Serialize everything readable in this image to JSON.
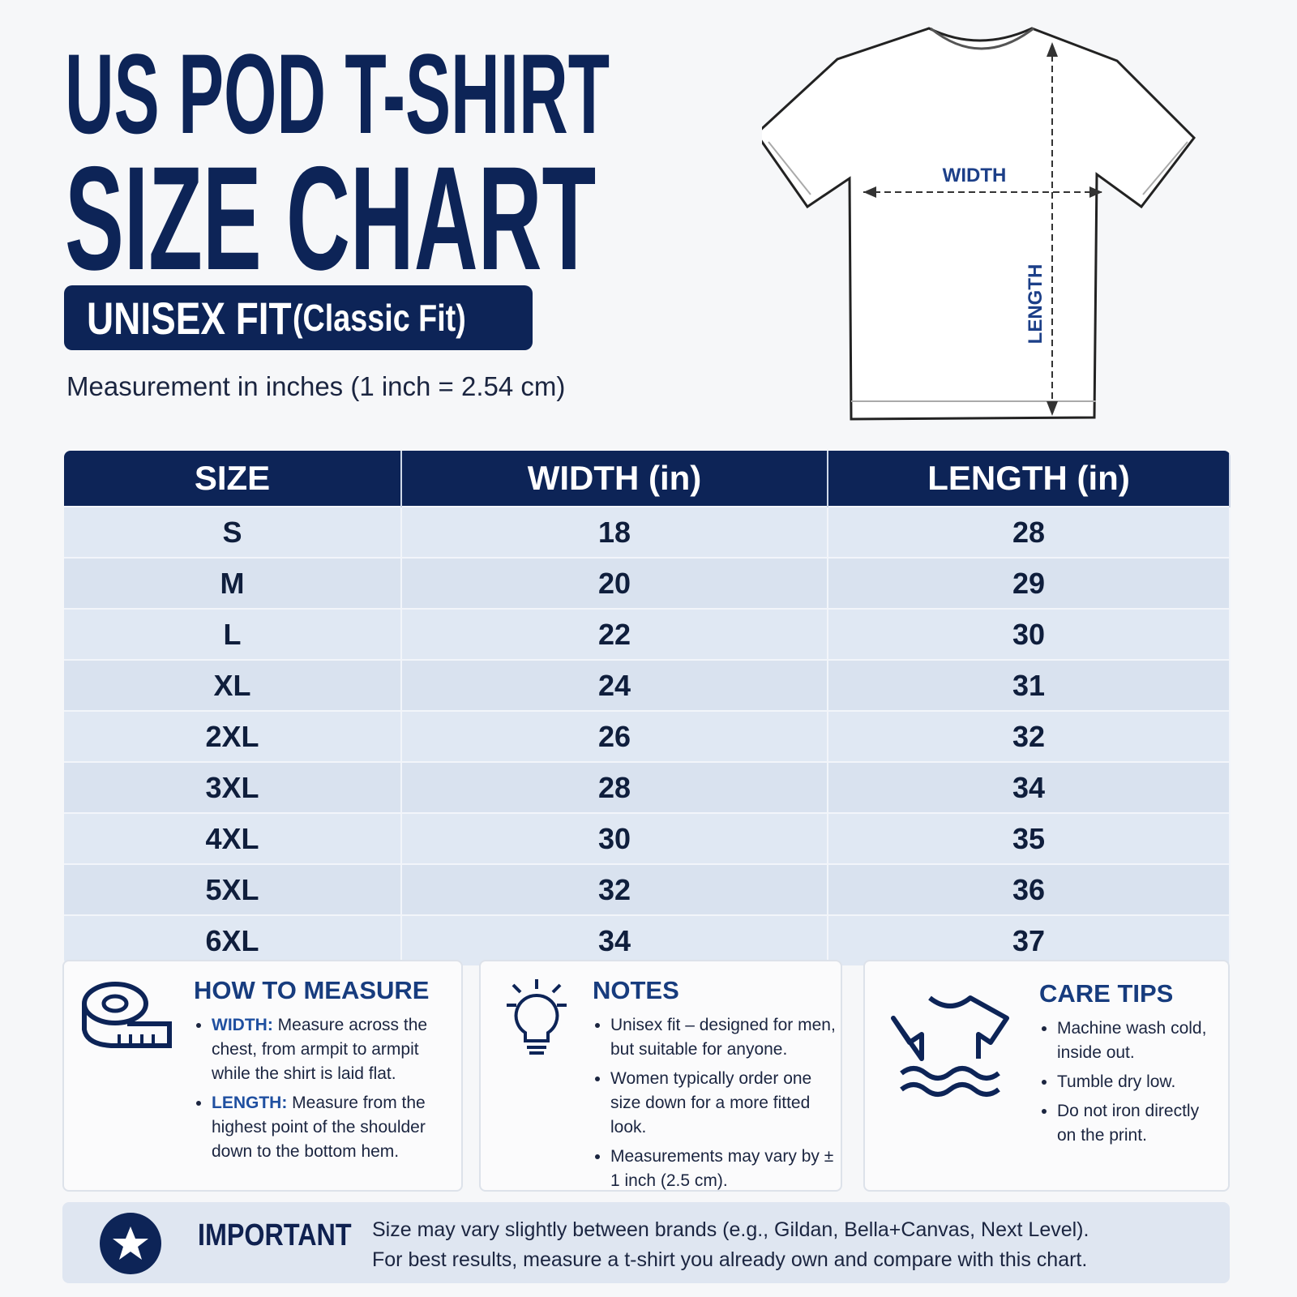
{
  "header": {
    "title_line1": "US POD T-SHIRT",
    "title_line2": "SIZE CHART",
    "fit": "UNISEX FIT",
    "fit_note": "(Classic Fit)",
    "measurement": "Measurement in inches (1 inch = 2.54 cm)"
  },
  "diagram": {
    "width_label": "WIDTH",
    "length_label": "LENGTH"
  },
  "table": {
    "headers": [
      "SIZE",
      "WIDTH (in)",
      "LENGTH (in)"
    ],
    "rows": [
      [
        "S",
        18,
        28
      ],
      [
        "M",
        20,
        29
      ],
      [
        "L",
        22,
        30
      ],
      [
        "XL",
        24,
        31
      ],
      [
        "2XL",
        26,
        32
      ],
      [
        "3XL",
        28,
        34
      ],
      [
        "4XL",
        30,
        35
      ],
      [
        "5XL",
        32,
        36
      ],
      [
        "6XL",
        34,
        37
      ]
    ]
  },
  "how_to_measure": {
    "title": "HOW TO MEASURE",
    "items": [
      {
        "lead": "WIDTH:",
        "text": "Measure across the chest, from armpit to armpit while the shirt is laid flat."
      },
      {
        "lead": "LENGTH:",
        "text": "Measure from the highest point of the shoulder down to the bottom hem."
      }
    ]
  },
  "notes": {
    "title": "NOTES",
    "items": [
      "Unisex fit – designed for men, but suitable for anyone.",
      "Women typically order one size down for a more fitted look.",
      "Measurements may vary by ± 1 inch (2.5 cm)."
    ]
  },
  "care_tips": {
    "title": "CARE TIPS",
    "items": [
      "Machine wash cold, inside out.",
      "Tumble dry low.",
      "Do not iron directly on the print."
    ]
  },
  "important": {
    "title": "IMPORTANT",
    "lines": [
      "Size may vary slightly between brands (e.g., Gildan, Bella+Canvas, Next Level).",
      "For best results, measure a t-shirt you already own and compare with this chart."
    ]
  }
}
